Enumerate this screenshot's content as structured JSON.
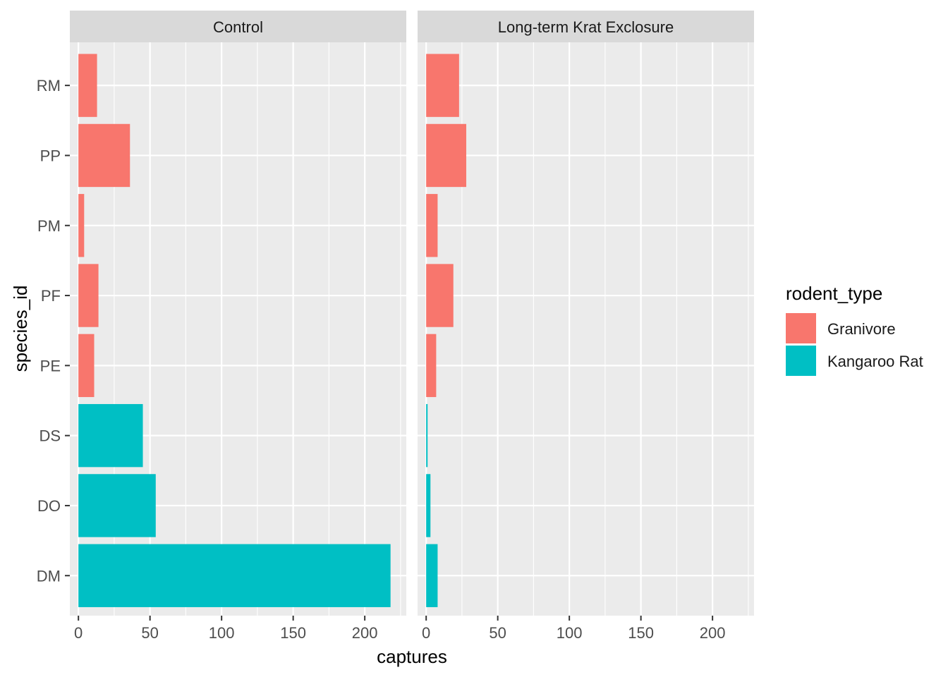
{
  "chart_data": {
    "type": "bar",
    "orientation": "horizontal",
    "facets": [
      "Control",
      "Long-term Krat Exclosure"
    ],
    "categories": [
      "DM",
      "DO",
      "DS",
      "PE",
      "PF",
      "PM",
      "PP",
      "RM"
    ],
    "category_groups": [
      "Kangaroo Rat",
      "Kangaroo Rat",
      "Kangaroo Rat",
      "Granivore",
      "Granivore",
      "Granivore",
      "Granivore",
      "Granivore"
    ],
    "series": [
      {
        "facet": "Control",
        "values": [
          218,
          54,
          45,
          11,
          14,
          4,
          36,
          13
        ]
      },
      {
        "facet": "Long-term Krat Exclosure",
        "values": [
          8,
          3,
          1,
          7,
          19,
          8,
          28,
          23
        ]
      }
    ],
    "xlabel": "captures",
    "ylabel": "species_id",
    "xlim": [
      -6,
      229
    ],
    "x_ticks": [
      0,
      50,
      100,
      150,
      200
    ],
    "x_minor_ticks": [
      25,
      75,
      125,
      175,
      225
    ],
    "grid": true,
    "legend": {
      "title": "rodent_type",
      "position": "right",
      "entries": [
        "Granivore",
        "Kangaroo Rat"
      ]
    },
    "colors": {
      "Granivore": "#F8766D",
      "Kangaroo Rat": "#00BFC4",
      "panel_bg": "#EBEBEB",
      "strip_bg": "#D9D9D9",
      "grid_line": "#FFFFFF",
      "text": "#1A1A1A",
      "tick_text": "#4D4D4D",
      "tick_mark": "#333333"
    }
  }
}
